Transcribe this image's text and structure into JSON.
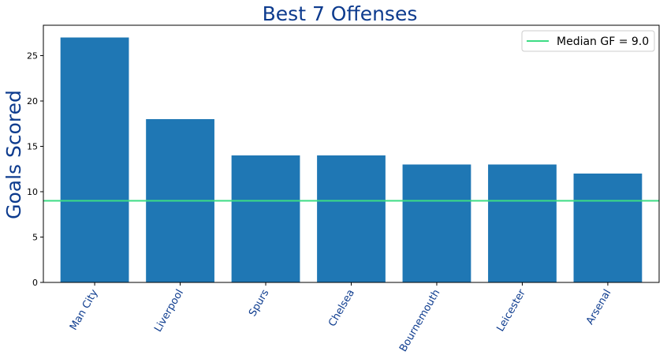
{
  "chart_data": {
    "type": "bar",
    "title": "Best 7 Offenses",
    "xlabel": "",
    "ylabel": "Goals Scored",
    "categories": [
      "Man City",
      "Liverpool",
      "Spurs",
      "Chelsea",
      "Bournemouth",
      "Leicester",
      "Arsenal"
    ],
    "values": [
      27,
      18,
      14,
      14,
      13,
      13,
      12
    ],
    "ylim": [
      0,
      28.35
    ],
    "yticks": [
      "0",
      "5",
      "10",
      "15",
      "20",
      "25"
    ],
    "reference_line": {
      "label": "Median GF = 9.0",
      "value": 9.0
    },
    "legend_position": "top-right",
    "grid": false,
    "colors": {
      "bar": "#1f77b4",
      "reference_line": "#3ddc84",
      "title": "#0d3b8e",
      "tick_label": "#0d3b8e"
    }
  }
}
